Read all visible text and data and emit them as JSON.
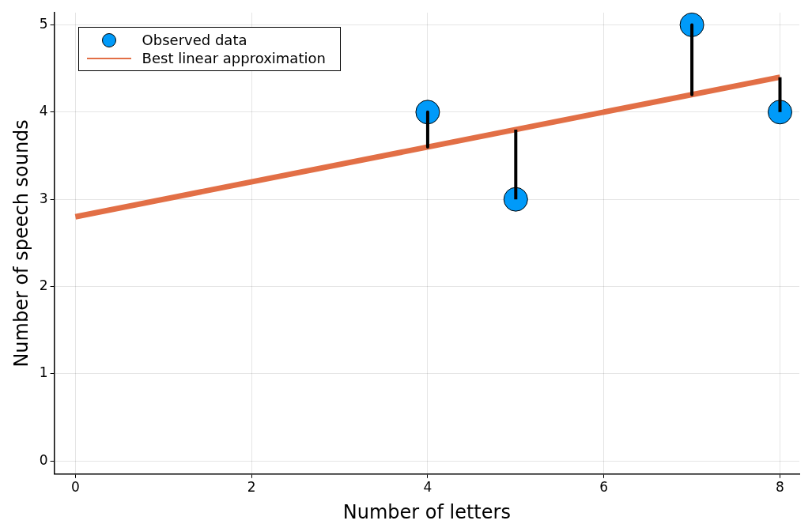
{
  "chart_data": {
    "type": "scatter",
    "xlabel": "Number of letters",
    "ylabel": "Number of speech sounds",
    "xlim": [
      -0.24,
      8.22
    ],
    "ylim": [
      -0.15,
      5.14
    ],
    "xticks": [
      0,
      2,
      4,
      6,
      8
    ],
    "yticks": [
      0,
      1,
      2,
      3,
      4,
      5
    ],
    "grid": true,
    "legend": "top left",
    "series": [
      {
        "name": "Observed data",
        "color": "#009af9",
        "marker": "circle",
        "x": [
          4,
          5,
          7,
          8
        ],
        "values": [
          4,
          3,
          5,
          4
        ]
      },
      {
        "type": "line",
        "marker": "none",
        "color": "#000000",
        "x": [
          4,
          4
        ],
        "values": [
          4,
          3.6
        ]
      },
      {
        "type": "line",
        "marker": "none",
        "color": "#000000",
        "x": [
          5,
          5
        ],
        "values": [
          3,
          3.8
        ]
      },
      {
        "type": "line",
        "marker": "none",
        "color": "#000000",
        "x": [
          7,
          7
        ],
        "values": [
          5,
          4.2
        ]
      },
      {
        "type": "line",
        "marker": "none",
        "color": "#000000",
        "x": [
          8,
          8
        ],
        "values": [
          4,
          4.4
        ]
      },
      {
        "name": "Best linear approximation",
        "type": "line",
        "marker": "none",
        "color": "#e26f46",
        "x": [
          0,
          8
        ],
        "values": [
          2.8,
          4.4
        ],
        "line_style": "solid"
      }
    ]
  }
}
